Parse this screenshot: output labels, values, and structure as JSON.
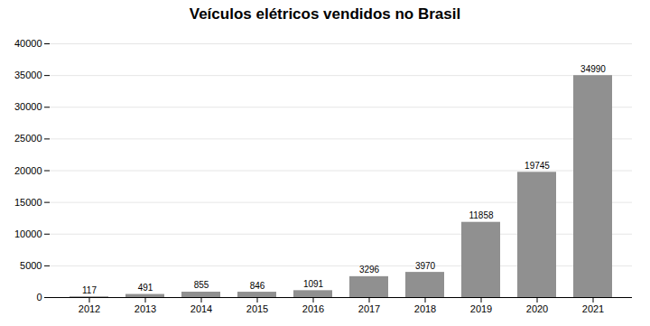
{
  "chart_data": {
    "type": "bar",
    "title": "Veículos elétricos vendidos no Brasil",
    "categories": [
      "2012",
      "2013",
      "2014",
      "2015",
      "2016",
      "2017",
      "2018",
      "2019",
      "2020",
      "2021"
    ],
    "values": [
      117,
      491,
      855,
      846,
      1091,
      3296,
      3970,
      11858,
      19745,
      34990
    ],
    "color": "#909090",
    "ylim": [
      0,
      40000
    ],
    "yticks": [
      0,
      5000,
      10000,
      15000,
      20000,
      25000,
      30000,
      35000,
      40000
    ],
    "grid": true,
    "data_labels": true
  }
}
